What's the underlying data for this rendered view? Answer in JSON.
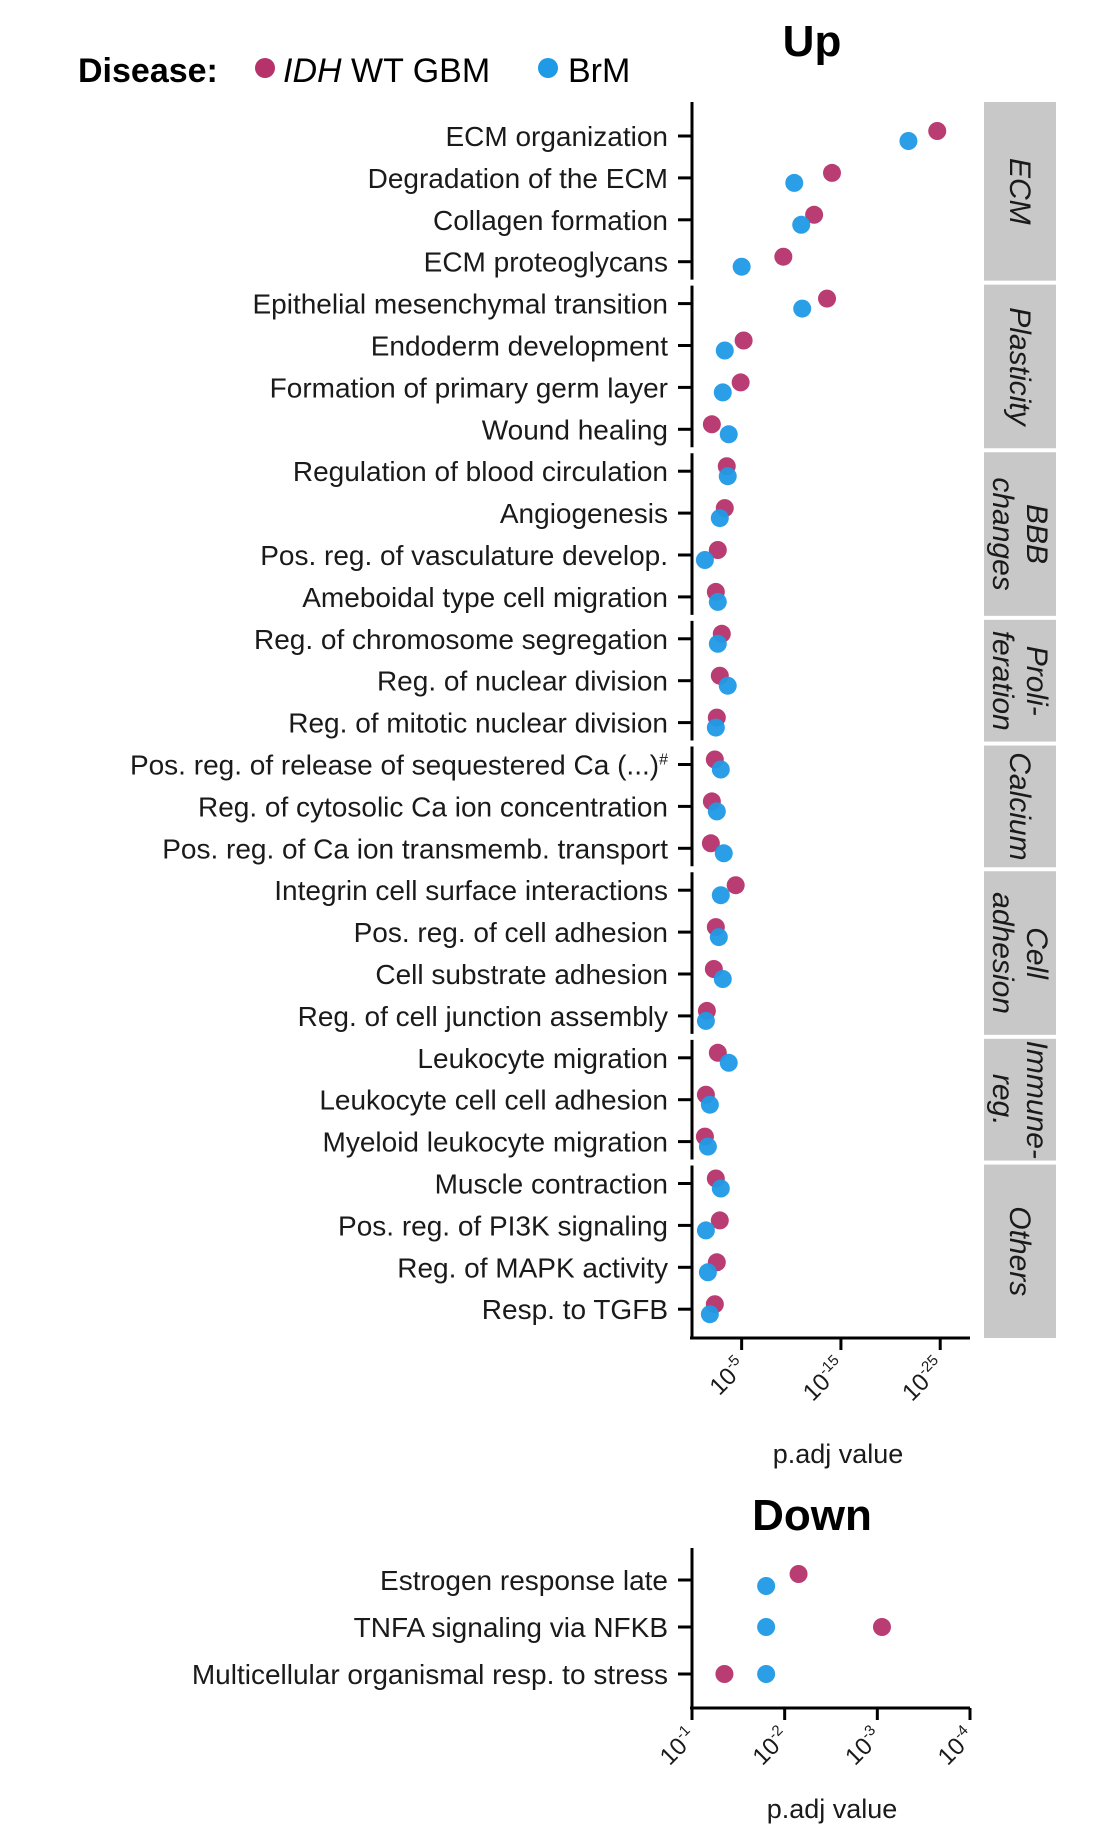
{
  "legend": {
    "title": "Disease:",
    "entries": [
      {
        "name_italic": "IDH",
        "name_rest": " WT GBM",
        "color": "#b5326a"
      },
      {
        "name_italic": "",
        "name_rest": "BrM",
        "color": "#1f9ae6"
      }
    ]
  },
  "chart_data": [
    {
      "type": "scatter",
      "title": "Up",
      "xlabel": "p.adj value",
      "x_scale": "-log10",
      "x_ticks": [
        {
          "value": 1e-05,
          "base": "10",
          "exp": "-5"
        },
        {
          "value": 1e-15,
          "base": "10",
          "exp": "-15"
        },
        {
          "value": 1e-25,
          "base": "10",
          "exp": "-25"
        }
      ],
      "xlim": [
        1,
        1e-28
      ],
      "series": [
        {
          "name": "IDH WT GBM",
          "color": "#b5326a"
        },
        {
          "name": "BrM",
          "color": "#1f9ae6"
        }
      ],
      "categories": [
        "ECM organization",
        "Degradation of the ECM",
        "Collagen formation",
        "ECM proteoglycans",
        "Epithelial mesenchymal transition",
        "Endoderm development",
        "Formation of primary germ layer",
        "Wound healing",
        "Regulation of blood circulation",
        "Angiogenesis",
        "Pos. reg. of vasculature develop.",
        "Ameboidal type cell migration",
        "Reg. of chromosome segregation",
        "Reg. of nuclear division",
        "Reg. of mitotic nuclear division",
        "Pos. reg. of release of sequestered Ca (...)#",
        "Reg. of cytosolic Ca ion concentration",
        "Pos. reg. of Ca ion transmemb. transport",
        "Integrin cell surface interactions",
        "Pos. reg. of cell adhesion",
        "Cell substrate adhesion",
        "Reg. of cell junction assembly",
        "Leukocyte migration",
        "Leukocyte cell cell adhesion",
        "Myeloid leukocyte migration",
        "Muscle contraction",
        "Pos. reg. of PI3K signaling",
        "Reg. of MAPK activity",
        "Resp. to TGFB"
      ],
      "values_neglog10": {
        "IDH WT GBM": [
          24.7,
          14.1,
          12.3,
          9.2,
          13.6,
          5.2,
          4.9,
          2.0,
          3.5,
          3.3,
          2.6,
          2.4,
          3.0,
          2.8,
          2.5,
          2.3,
          2.0,
          1.9,
          4.4,
          2.4,
          2.2,
          1.5,
          2.6,
          1.4,
          1.3,
          2.4,
          2.8,
          2.5,
          2.3
        ],
        "BrM": [
          21.8,
          10.3,
          11.0,
          5.0,
          11.1,
          3.3,
          3.1,
          3.7,
          3.6,
          2.8,
          1.3,
          2.6,
          2.6,
          3.6,
          2.4,
          2.9,
          2.5,
          3.2,
          2.9,
          2.7,
          3.1,
          1.4,
          3.7,
          1.8,
          1.6,
          2.9,
          1.4,
          1.6,
          1.8
        ]
      },
      "facets": [
        {
          "label_lines": [
            "ECM"
          ],
          "rows": [
            0,
            3
          ]
        },
        {
          "label_lines": [
            "Plasticity"
          ],
          "rows": [
            4,
            7
          ]
        },
        {
          "label_lines": [
            "BBB",
            "changes"
          ],
          "rows": [
            8,
            11
          ]
        },
        {
          "label_lines": [
            "Proli-",
            "feration"
          ],
          "rows": [
            12,
            14
          ]
        },
        {
          "label_lines": [
            "Calcium"
          ],
          "rows": [
            15,
            17
          ]
        },
        {
          "label_lines": [
            "Cell",
            "adhesion"
          ],
          "rows": [
            18,
            21
          ]
        },
        {
          "label_lines": [
            "Immune-",
            "reg."
          ],
          "rows": [
            22,
            24
          ]
        },
        {
          "label_lines": [
            "Others"
          ],
          "rows": [
            25,
            28
          ]
        }
      ]
    },
    {
      "type": "scatter",
      "title": "Down",
      "xlabel": "p.adj value",
      "x_scale": "-log10",
      "x_ticks": [
        {
          "value": 0.1,
          "base": "10",
          "exp": "-1"
        },
        {
          "value": 0.01,
          "base": "10",
          "exp": "-2"
        },
        {
          "value": 0.001,
          "base": "10",
          "exp": "-3"
        },
        {
          "value": 0.0001,
          "base": "10",
          "exp": "-4"
        }
      ],
      "xlim": [
        0.1,
        0.0001
      ],
      "series": [
        {
          "name": "IDH WT GBM",
          "color": "#b5326a"
        },
        {
          "name": "BrM",
          "color": "#1f9ae6"
        }
      ],
      "categories": [
        "Estrogen response late",
        "TNFA signaling via NFKB",
        "Multicellular organismal resp. to stress"
      ],
      "values_neglog10": {
        "IDH WT GBM": [
          2.15,
          3.05,
          1.35
        ],
        "BrM": [
          1.8,
          1.8,
          1.8
        ]
      }
    }
  ]
}
